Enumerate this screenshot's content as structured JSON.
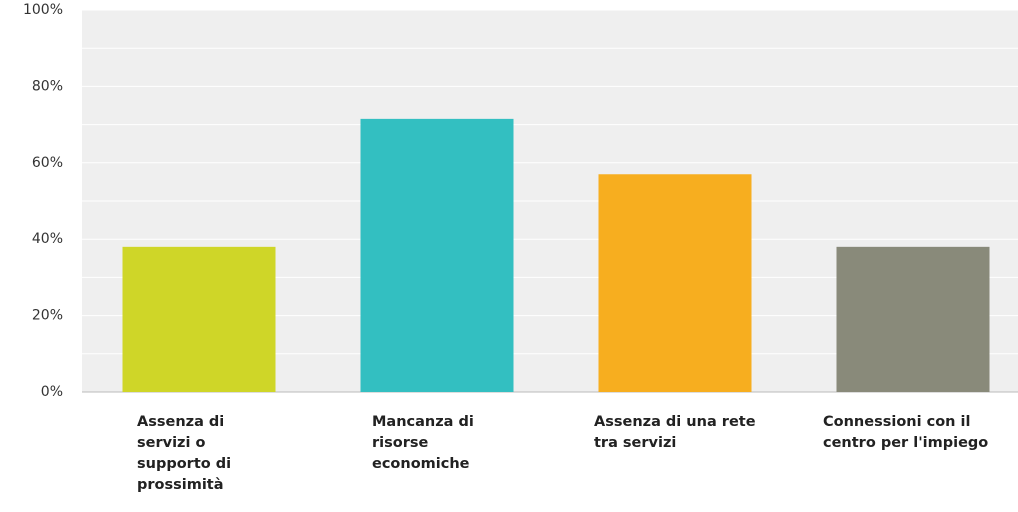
{
  "chart_data": {
    "type": "bar",
    "categories": [
      "Assenza di servizi o supporto di prossimità",
      "Mancanza di risorse economiche",
      "Assenza di una rete tra servizi",
      "Connessioni con il centro per l'impiego"
    ],
    "values": [
      38,
      71.5,
      57,
      38
    ],
    "colors": [
      "#cfd628",
      "#33bfc1",
      "#f7ae1f",
      "#898a7a"
    ],
    "ylim": [
      0,
      100
    ],
    "yticks": [
      {
        "value": 0,
        "label": "0%"
      },
      {
        "value": 20,
        "label": "20%"
      },
      {
        "value": 40,
        "label": "40%"
      },
      {
        "value": 60,
        "label": "60%"
      },
      {
        "value": 80,
        "label": "80%"
      },
      {
        "value": 100,
        "label": "100%"
      }
    ],
    "minor_gridlines": [
      10,
      30,
      50,
      70,
      90
    ],
    "grid": true
  }
}
